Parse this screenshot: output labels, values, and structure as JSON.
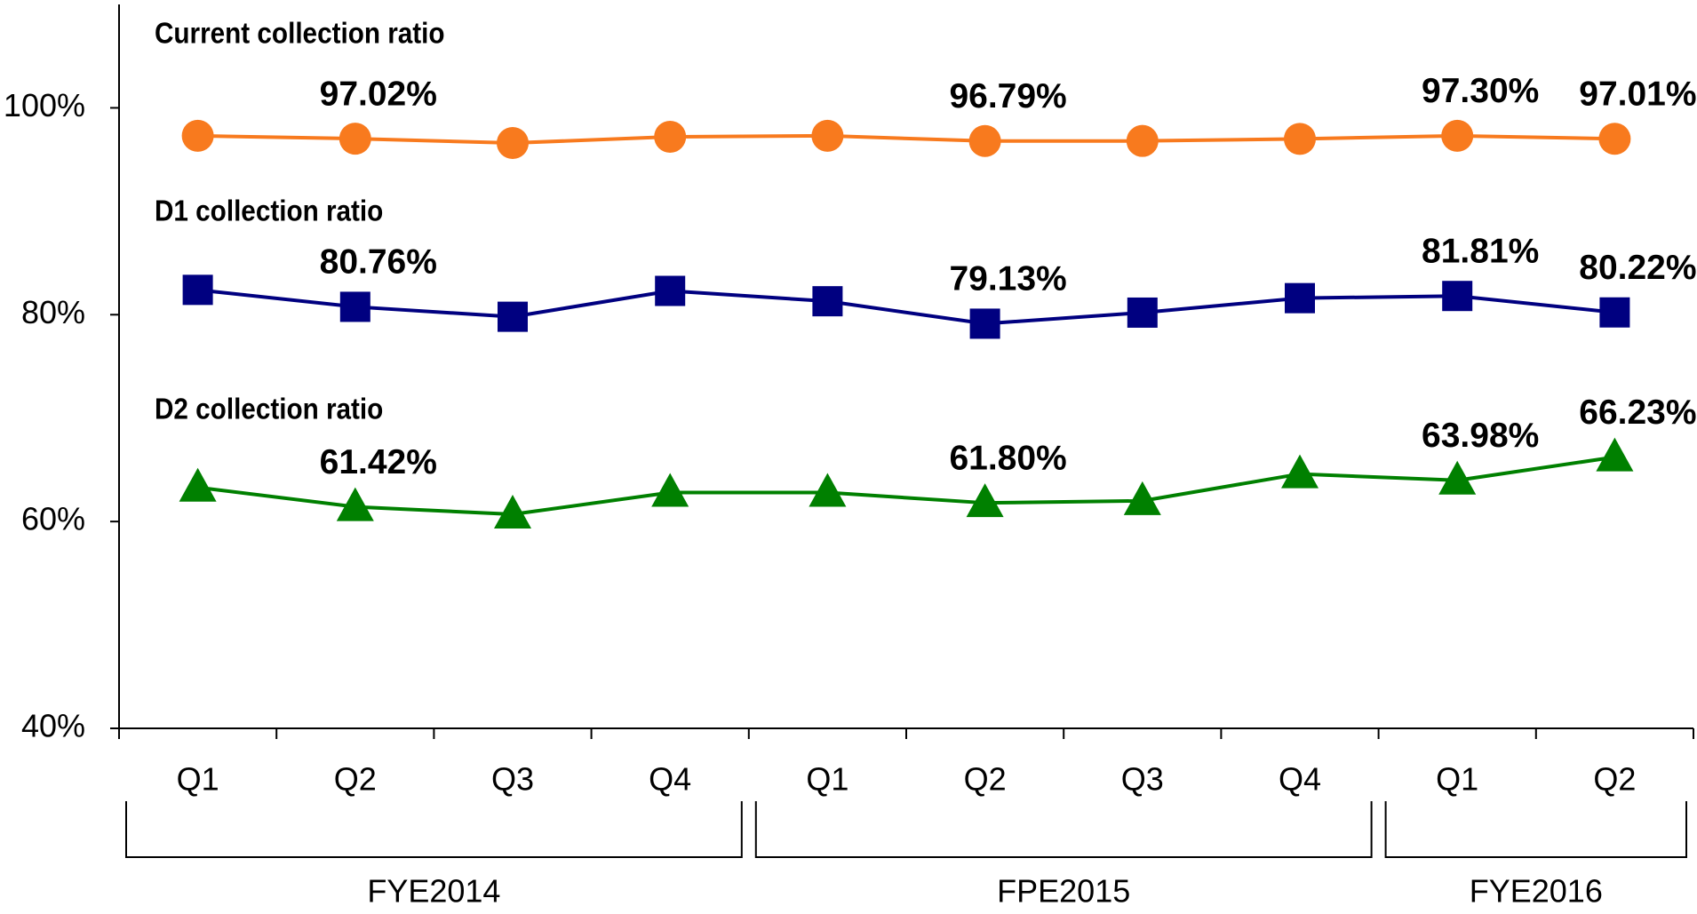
{
  "chart_data": {
    "type": "line",
    "categories": [
      "Q1",
      "Q2",
      "Q3",
      "Q4",
      "Q1",
      "Q2",
      "Q3",
      "Q4",
      "Q1",
      "Q2"
    ],
    "groups": [
      {
        "label": "FYE2014",
        "count": 4
      },
      {
        "label": "FPE2015",
        "count": 4
      },
      {
        "label": "FYE2016",
        "count": 2
      }
    ],
    "series": [
      {
        "name": "Current collection ratio",
        "color": "#f87a1e",
        "marker": "circle",
        "values": [
          97.3,
          97.02,
          96.6,
          97.2,
          97.3,
          96.79,
          96.8,
          97.0,
          97.3,
          97.01
        ],
        "value_labels": [
          null,
          "97.02%",
          null,
          null,
          null,
          "96.79%",
          null,
          null,
          "97.30%",
          "97.01%"
        ]
      },
      {
        "name": "D1 collection ratio",
        "color": "#000080",
        "marker": "square",
        "values": [
          82.4,
          80.76,
          79.8,
          82.3,
          81.3,
          79.13,
          80.2,
          81.6,
          81.81,
          80.22
        ],
        "value_labels": [
          null,
          "80.76%",
          null,
          null,
          null,
          "79.13%",
          null,
          null,
          "81.81%",
          "80.22%"
        ]
      },
      {
        "name": "D2 collection ratio",
        "color": "#008000",
        "marker": "triangle",
        "values": [
          63.3,
          61.42,
          60.7,
          62.8,
          62.8,
          61.8,
          62.0,
          64.6,
          63.98,
          66.23
        ],
        "value_labels": [
          null,
          "61.42%",
          null,
          null,
          null,
          "61.80%",
          null,
          null,
          "63.98%",
          "66.23%"
        ]
      }
    ],
    "ylim": [
      40,
      110
    ],
    "yticks": [
      {
        "value": 40,
        "label": "40%"
      },
      {
        "value": 60,
        "label": "60%"
      },
      {
        "value": 80,
        "label": "80%"
      },
      {
        "value": 100,
        "label": "100%"
      }
    ]
  }
}
